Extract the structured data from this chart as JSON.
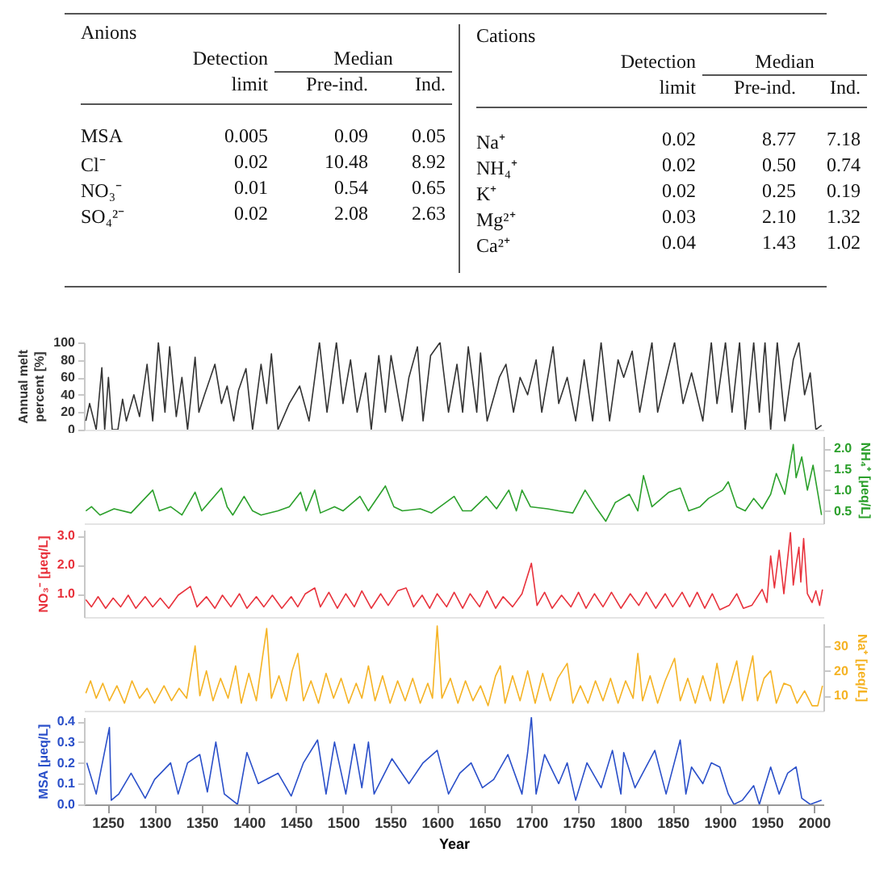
{
  "chart_data": [
    {
      "type": "other",
      "annotations": [
        "Anions",
        "Detection",
        "Median",
        "limit",
        "Pre-ind.",
        "Ind.",
        "MSA",
        "0.005",
        "0.09",
        "0.05",
        "Cl⁻",
        "0.02",
        "10.48",
        "8.92",
        "NO₃⁻",
        "0.01",
        "0.54",
        "0.65",
        "SO₄²⁻",
        "0.02",
        "2.08",
        "2.63"
      ]
    },
    {
      "type": "other",
      "annotations": [
        "Cations",
        "Detection",
        "Median",
        "limit",
        "Pre-ind.",
        "Ind.",
        "Na⁺",
        "0.02",
        "8.77",
        "7.18",
        "NH₄⁺",
        "0.02",
        "0.50",
        "0.74",
        "K⁺",
        "0.02",
        "0.25",
        "0.19",
        "Mg²⁺",
        "0.03",
        "2.10",
        "1.32",
        "Ca²⁺",
        "0.04",
        "1.43",
        "1.02"
      ]
    },
    {
      "type": "line",
      "ylabel": "Annual melt\npercent [%]",
      "xlim": [
        1225,
        2010
      ],
      "ylim": [
        0,
        100
      ],
      "yticks": [
        0,
        20,
        40,
        60,
        80,
        100
      ],
      "tick_labels": "y",
      "x": [
        1227,
        1231,
        1238,
        1244,
        1247,
        1251,
        1255,
        1261,
        1266,
        1270,
        1278,
        1284,
        1292,
        1298,
        1304,
        1311,
        1316,
        1323,
        1329,
        1335,
        1343,
        1347,
        1353,
        1364,
        1371,
        1377,
        1384,
        1389,
        1397,
        1404,
        1413,
        1419,
        1424,
        1431,
        1443,
        1454,
        1464,
        1475,
        1483,
        1493,
        1500,
        1508,
        1515,
        1524,
        1530,
        1538,
        1545,
        1551,
        1563,
        1570,
        1579,
        1585,
        1593,
        1603,
        1612,
        1621,
        1627,
        1633,
        1642,
        1646,
        1653,
        1666,
        1673,
        1681,
        1688,
        1696,
        1705,
        1711,
        1723,
        1729,
        1738,
        1747,
        1756,
        1765,
        1774,
        1783,
        1792,
        1798,
        1807,
        1815,
        1828,
        1834,
        1843,
        1852,
        1861,
        1870,
        1882,
        1891,
        1897,
        1906,
        1913,
        1921,
        1927,
        1936,
        1942,
        1948,
        1954,
        1961,
        1969,
        1978,
        1984,
        1990,
        1996,
        2002,
        2008
      ],
      "series": [
        {
          "color": "#333333",
          "values": [
            10,
            30,
            0,
            71,
            0,
            60,
            0,
            0,
            35,
            10,
            40,
            15,
            75,
            10,
            100,
            20,
            95,
            15,
            60,
            0,
            83,
            20,
            40,
            75,
            30,
            50,
            10,
            45,
            70,
            0,
            75,
            30,
            87,
            0,
            30,
            50,
            10,
            100,
            20,
            100,
            30,
            80,
            20,
            65,
            0,
            85,
            20,
            85,
            10,
            60,
            95,
            10,
            85,
            100,
            20,
            75,
            20,
            95,
            20,
            88,
            10,
            60,
            75,
            20,
            60,
            40,
            80,
            20,
            95,
            30,
            60,
            10,
            80,
            10,
            100,
            10,
            80,
            60,
            90,
            20,
            100,
            20,
            60,
            100,
            30,
            65,
            10,
            100,
            30,
            100,
            20,
            100,
            0,
            100,
            20,
            100,
            0,
            100,
            10,
            80,
            100,
            40,
            65,
            0,
            5
          ]
        }
      ]
    },
    {
      "type": "line",
      "y2label": "NH₄⁺ [μeq/L]",
      "xlim": [
        1225,
        2010
      ],
      "y2lim": [
        0.2,
        2.3
      ],
      "y2ticks": [
        0.5,
        {
          "value": 1,
          "label": "1.0"
        },
        1.5,
        {
          "value": 2,
          "label": "2.0"
        }
      ],
      "tick_labels": "y",
      "x": [
        1227,
        1233,
        1242,
        1257,
        1275,
        1298,
        1305,
        1317,
        1329,
        1343,
        1350,
        1371,
        1377,
        1383,
        1395,
        1404,
        1413,
        1431,
        1443,
        1455,
        1461,
        1470,
        1476,
        1491,
        1500,
        1518,
        1527,
        1545,
        1554,
        1563,
        1582,
        1594,
        1618,
        1627,
        1636,
        1652,
        1663,
        1676,
        1684,
        1690,
        1699,
        1717,
        1729,
        1744,
        1757,
        1768,
        1779,
        1789,
        1804,
        1813,
        1819,
        1828,
        1846,
        1858,
        1867,
        1879,
        1888,
        1903,
        1909,
        1918,
        1927,
        1936,
        1945,
        1954,
        1960,
        1969,
        1978,
        1981,
        1987,
        1993,
        1999,
        2005,
        2008
      ],
      "series": [
        {
          "axis": "y2",
          "color": "#2ca02c",
          "values": [
            0.5,
            0.6,
            0.4,
            0.55,
            0.45,
            1.0,
            0.5,
            0.6,
            0.4,
            0.95,
            0.5,
            1.05,
            0.6,
            0.4,
            0.85,
            0.5,
            0.4,
            0.5,
            0.6,
            0.95,
            0.5,
            1.0,
            0.45,
            0.6,
            0.5,
            0.85,
            0.5,
            1.1,
            0.6,
            0.5,
            0.55,
            0.45,
            0.85,
            0.5,
            0.5,
            0.85,
            0.55,
            1.0,
            0.5,
            1.0,
            0.6,
            0.55,
            0.5,
            0.45,
            1.0,
            0.6,
            0.25,
            0.7,
            0.9,
            0.5,
            1.35,
            0.6,
            0.95,
            1.05,
            0.5,
            0.6,
            0.8,
            1.0,
            1.2,
            0.6,
            0.5,
            0.8,
            0.55,
            0.9,
            1.4,
            0.9,
            2.1,
            1.3,
            1.8,
            1.0,
            1.6,
            0.8,
            0.4
          ]
        }
      ]
    },
    {
      "type": "line",
      "ylabel": "NO₃⁻ [μeq/L]",
      "xlim": [
        1225,
        2010
      ],
      "ylim": [
        0.2,
        3.2
      ],
      "yticks": [
        {
          "value": 1,
          "label": "1.0"
        },
        {
          "value": 2,
          "label": "2.0"
        },
        {
          "value": 3,
          "label": "3.0"
        }
      ],
      "tick_labels": "y",
      "x": [
        1227,
        1233,
        1240,
        1248,
        1256,
        1264,
        1272,
        1280,
        1290,
        1298,
        1306,
        1315,
        1325,
        1338,
        1345,
        1355,
        1364,
        1372,
        1381,
        1390,
        1398,
        1408,
        1416,
        1425,
        1435,
        1445,
        1452,
        1460,
        1470,
        1476,
        1485,
        1494,
        1503,
        1512,
        1520,
        1530,
        1540,
        1548,
        1558,
        1567,
        1575,
        1584,
        1592,
        1600,
        1610,
        1618,
        1627,
        1635,
        1645,
        1653,
        1662,
        1670,
        1680,
        1690,
        1700,
        1706,
        1714,
        1722,
        1732,
        1742,
        1750,
        1758,
        1767,
        1776,
        1785,
        1795,
        1805,
        1814,
        1822,
        1832,
        1842,
        1850,
        1860,
        1868,
        1876,
        1884,
        1892,
        1900,
        1910,
        1918,
        1925,
        1934,
        1945,
        1950,
        1954,
        1958,
        1963,
        1968,
        1975,
        1978,
        1981,
        1984,
        1986,
        1989,
        1993,
        1998,
        2002,
        2006,
        2009
      ],
      "series": [
        {
          "color": "#e8323c",
          "values": [
            0.8,
            0.55,
            0.9,
            0.5,
            0.85,
            0.55,
            0.95,
            0.5,
            0.9,
            0.55,
            0.85,
            0.5,
            0.95,
            1.25,
            0.55,
            0.9,
            0.5,
            0.95,
            0.55,
            1.0,
            0.5,
            0.9,
            0.55,
            0.95,
            0.5,
            0.9,
            0.55,
            1.0,
            1.2,
            0.55,
            1.05,
            0.5,
            1.0,
            0.55,
            1.1,
            0.5,
            1.0,
            0.6,
            1.1,
            1.2,
            0.55,
            0.95,
            0.5,
            1.0,
            0.55,
            1.05,
            0.5,
            1.0,
            0.55,
            1.1,
            0.5,
            0.9,
            0.55,
            1.0,
            2.05,
            0.6,
            1.05,
            0.5,
            0.95,
            0.55,
            1.05,
            0.5,
            1.0,
            0.55,
            1.05,
            0.5,
            1.0,
            0.6,
            1.05,
            0.5,
            1.0,
            0.55,
            1.05,
            0.55,
            1.05,
            0.5,
            1.0,
            0.45,
            0.6,
            1.0,
            0.5,
            0.6,
            1.15,
            0.7,
            2.3,
            1.2,
            2.5,
            1.0,
            3.1,
            1.3,
            2.0,
            2.6,
            1.4,
            2.9,
            1.0,
            0.7,
            1.1,
            0.6,
            1.15
          ]
        }
      ]
    },
    {
      "type": "line",
      "y2label": "Na⁺ [μeq/L]",
      "xlim": [
        1225,
        2010
      ],
      "y2lim": [
        4,
        39
      ],
      "y2ticks": [
        10,
        20,
        30
      ],
      "tick_labels": "y",
      "x": [
        1227,
        1232,
        1238,
        1245,
        1252,
        1260,
        1268,
        1276,
        1284,
        1292,
        1300,
        1310,
        1318,
        1326,
        1334,
        1343,
        1348,
        1355,
        1362,
        1370,
        1378,
        1386,
        1392,
        1400,
        1408,
        1414,
        1419,
        1424,
        1432,
        1440,
        1446,
        1452,
        1458,
        1466,
        1474,
        1482,
        1490,
        1498,
        1506,
        1514,
        1520,
        1527,
        1534,
        1542,
        1550,
        1558,
        1566,
        1574,
        1582,
        1590,
        1595,
        1600,
        1605,
        1614,
        1622,
        1630,
        1638,
        1646,
        1654,
        1662,
        1667,
        1672,
        1680,
        1688,
        1696,
        1704,
        1712,
        1720,
        1728,
        1738,
        1744,
        1752,
        1760,
        1768,
        1776,
        1784,
        1792,
        1800,
        1808,
        1813,
        1818,
        1826,
        1834,
        1842,
        1852,
        1858,
        1866,
        1874,
        1882,
        1890,
        1897,
        1904,
        1912,
        1918,
        1924,
        1935,
        1940,
        1947,
        1954,
        1960,
        1968,
        1975,
        1982,
        1990,
        1998,
        2004,
        2009
      ],
      "series": [
        {
          "axis": "y2",
          "color": "#f5b324",
          "values": [
            11,
            16,
            9,
            15,
            8,
            14,
            7,
            16,
            9,
            13,
            7,
            14,
            8,
            13,
            9,
            30,
            10,
            20,
            8,
            17,
            9,
            22,
            7,
            19,
            8,
            24,
            37,
            9,
            18,
            8,
            20,
            27,
            8,
            16,
            7,
            19,
            9,
            17,
            7,
            15,
            9,
            22,
            8,
            18,
            7,
            16,
            8,
            17,
            7,
            15,
            9,
            38,
            9,
            17,
            7,
            16,
            8,
            14,
            6,
            18,
            22,
            7,
            18,
            8,
            20,
            7,
            19,
            8,
            17,
            23,
            7,
            14,
            7,
            16,
            8,
            17,
            7,
            16,
            9,
            27,
            8,
            18,
            7,
            16,
            25,
            8,
            17,
            7,
            18,
            8,
            23,
            7,
            16,
            24,
            8,
            26,
            8,
            17,
            20,
            7,
            15,
            14,
            7,
            12,
            6,
            6,
            14
          ]
        }
      ]
    },
    {
      "type": "line",
      "ylabel": "MSA [μeq/L]",
      "xlabel": "Year",
      "xlim": [
        1225,
        2010
      ],
      "xticks": [
        1250,
        1300,
        1350,
        1400,
        1450,
        1500,
        1550,
        1600,
        1650,
        1700,
        1750,
        1800,
        1850,
        1900,
        1950,
        2000
      ],
      "ylim": [
        0,
        0.42
      ],
      "yticks": [
        {
          "value": 0,
          "label": "0.0"
        },
        0.1,
        0.2,
        0.3,
        0.4
      ],
      "x": [
        1228,
        1238,
        1252,
        1254,
        1262,
        1275,
        1290,
        1300,
        1317,
        1325,
        1335,
        1348,
        1356,
        1365,
        1374,
        1388,
        1398,
        1410,
        1431,
        1445,
        1458,
        1473,
        1482,
        1491,
        1503,
        1512,
        1520,
        1527,
        1533,
        1552,
        1570,
        1585,
        1600,
        1612,
        1624,
        1636,
        1648,
        1660,
        1675,
        1690,
        1696,
        1700,
        1705,
        1714,
        1729,
        1738,
        1747,
        1759,
        1774,
        1786,
        1795,
        1798,
        1810,
        1831,
        1843,
        1858,
        1864,
        1870,
        1882,
        1891,
        1900,
        1909,
        1915,
        1924,
        1936,
        1942,
        1954,
        1963,
        1972,
        1981,
        1987,
        1996,
        2008
      ],
      "series": [
        {
          "color": "#2a4fc9",
          "values": [
            0.2,
            0.05,
            0.37,
            0.02,
            0.05,
            0.15,
            0.03,
            0.12,
            0.2,
            0.05,
            0.2,
            0.24,
            0.06,
            0.3,
            0.05,
            0.0,
            0.25,
            0.1,
            0.15,
            0.04,
            0.2,
            0.31,
            0.05,
            0.3,
            0.05,
            0.29,
            0.08,
            0.3,
            0.05,
            0.22,
            0.1,
            0.2,
            0.26,
            0.05,
            0.15,
            0.2,
            0.08,
            0.12,
            0.24,
            0.05,
            0.25,
            0.42,
            0.05,
            0.24,
            0.1,
            0.2,
            0.02,
            0.2,
            0.08,
            0.26,
            0.05,
            0.25,
            0.08,
            0.26,
            0.05,
            0.31,
            0.05,
            0.18,
            0.1,
            0.2,
            0.18,
            0.05,
            0.0,
            0.02,
            0.09,
            0.0,
            0.18,
            0.05,
            0.15,
            0.18,
            0.03,
            0.0,
            0.02
          ]
        }
      ]
    }
  ]
}
